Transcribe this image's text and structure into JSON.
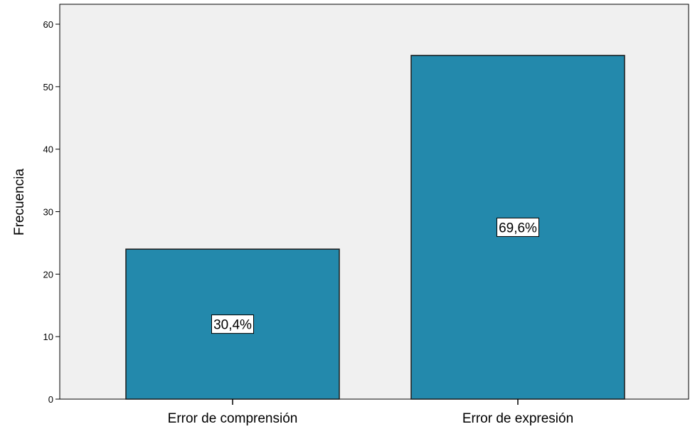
{
  "chart_data": {
    "type": "bar",
    "categories": [
      "Error de comprensión",
      "Error de expresión"
    ],
    "values": [
      24,
      55
    ],
    "data_labels": [
      "30,4%",
      "69,6%"
    ],
    "title": "",
    "xlabel": "",
    "ylabel": "Frecuencia",
    "ylim": [
      0,
      62
    ],
    "yticks": [
      "0",
      "10",
      "20",
      "30",
      "40",
      "50",
      "60"
    ],
    "grid": false,
    "colors": {
      "bar": "#2389ac",
      "bar_stroke": "#1a1a1a",
      "plot_background": "#f0f0f0",
      "page_background": "#ffffff"
    }
  }
}
